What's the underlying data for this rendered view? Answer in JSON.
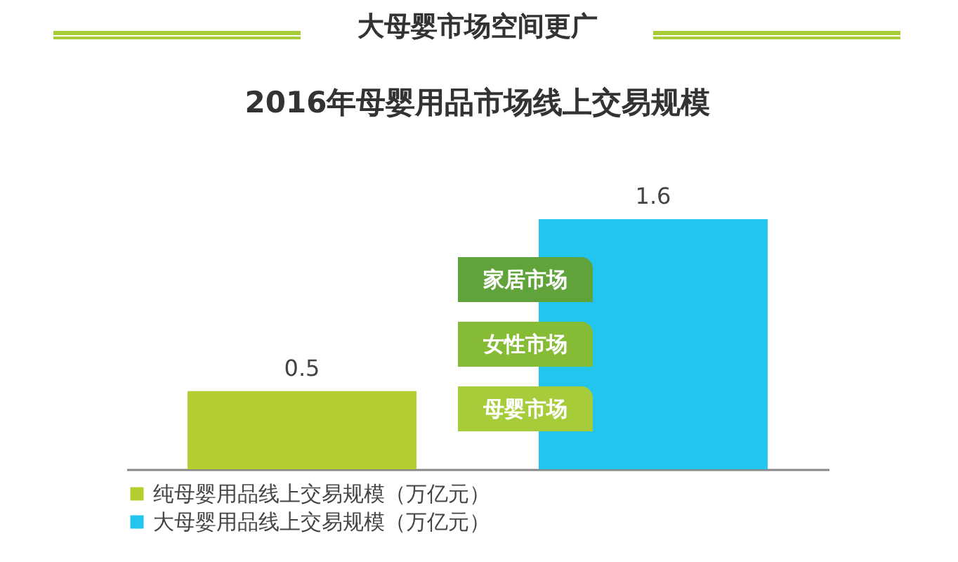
{
  "chart_data": {
    "type": "bar",
    "title": "大母婴市场空间更广",
    "subtitle": "2016年母婴用品市场线上交易规模",
    "categories": [
      null,
      null
    ],
    "series": [
      {
        "name": "纯母婴用品线上交易规模（万亿元）",
        "color": "#b2cf2f",
        "values": [
          0.5,
          null
        ]
      },
      {
        "name": "大母婴用品线上交易规模（万亿元）",
        "color": "#22c5ee",
        "values": [
          null,
          1.6
        ]
      }
    ],
    "data_labels": true,
    "legend": "bottom",
    "stacked": true,
    "annotations": [
      "家居市场",
      "女性市场",
      "母婴市场"
    ]
  }
}
